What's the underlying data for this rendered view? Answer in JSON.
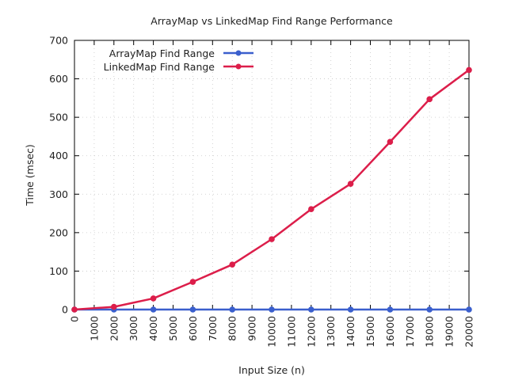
{
  "chart_data": {
    "type": "line",
    "title": "ArrayMap vs LinkedMap Find Range Performance",
    "xlabel": "Input Size (n)",
    "ylabel": "Time (msec)",
    "xlim": [
      0,
      20000
    ],
    "ylim": [
      0,
      700
    ],
    "xticks": [
      "0",
      "1000",
      "2000",
      "3000",
      "4000",
      "5000",
      "6000",
      "7000",
      "8000",
      "9000",
      "10000",
      "11000",
      "12000",
      "13000",
      "14000",
      "15000",
      "16000",
      "17000",
      "18000",
      "19000",
      "20000"
    ],
    "yticks": [
      "0",
      "100",
      "200",
      "300",
      "400",
      "500",
      "600",
      "700"
    ],
    "grid": true,
    "legend_position": "top-left",
    "x": [
      0,
      2000,
      4000,
      6000,
      8000,
      10000,
      12000,
      14000,
      16000,
      18000,
      20000
    ],
    "series": [
      {
        "name": "ArrayMap Find Range",
        "color": "#3a5fcd",
        "values": [
          0,
          0,
          0,
          0,
          0,
          0,
          0,
          0,
          0,
          0,
          0
        ]
      },
      {
        "name": "LinkedMap Find Range",
        "color": "#dc1e4a",
        "values": [
          0,
          7,
          29,
          72,
          117,
          183,
          261,
          327,
          436,
          547,
          623
        ]
      }
    ]
  }
}
